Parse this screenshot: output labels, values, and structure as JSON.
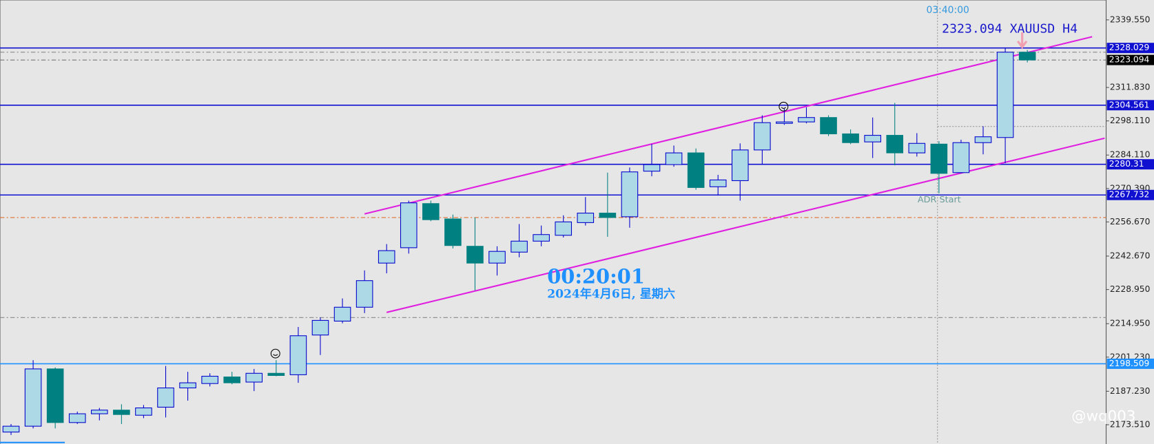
{
  "chart_data": {
    "type": "candlestick",
    "title": "2323.094 XAUUSD H4",
    "time_label": "03:40:00",
    "countdown": "00:20:01",
    "date_label": "2024年4月6日, 星期六",
    "annotation": "ADR Start",
    "watermark": "@wq003",
    "up_color": "#add8e6",
    "up_edge": "#0000cd",
    "down_color": "#008080",
    "open": [
      2170.5,
      2172.9,
      2196.4,
      2174.4,
      2178.0,
      2179.5,
      2177.4,
      2180.7,
      2188.6,
      2190.4,
      2193.1,
      2191.0,
      2194.6,
      2194.0,
      2210.3,
      2216.0,
      2221.7,
      2239.8,
      2246.1,
      2264.2,
      2257.9,
      2246.7,
      2239.8,
      2244.3,
      2248.8,
      2251.2,
      2256.4,
      2260.3,
      2258.8,
      2277.5,
      2280.2,
      2285.0,
      2271.1,
      2273.6,
      2286.2,
      2297.1,
      2297.7,
      2299.5,
      2292.8,
      2289.5,
      2292.2,
      2285.0,
      2288.6,
      2276.9,
      2289.2,
      2291.3,
      2326.3
    ],
    "high": [
      2173.8,
      2200.0,
      2197.0,
      2178.9,
      2180.4,
      2181.9,
      2181.6,
      2197.6,
      2195.2,
      2194.6,
      2195.2,
      2196.4,
      2200.0,
      2213.6,
      2217.5,
      2225.3,
      2236.8,
      2247.6,
      2265.4,
      2265.4,
      2259.7,
      2258.5,
      2246.7,
      2255.8,
      2255.2,
      2259.4,
      2266.9,
      2276.9,
      2279.0,
      2288.6,
      2288.0,
      2286.8,
      2276.0,
      2288.9,
      2300.4,
      2303.1,
      2303.7,
      2300.4,
      2294.6,
      2299.5,
      2305.5,
      2293.1,
      2289.8,
      2290.4,
      2295.9,
      2327.8,
      2327.2
    ],
    "low": [
      2169.3,
      2172.0,
      2172.0,
      2173.8,
      2175.3,
      2173.8,
      2176.2,
      2176.5,
      2183.4,
      2189.2,
      2190.1,
      2187.3,
      2193.4,
      2190.7,
      2202.1,
      2215.1,
      2219.3,
      2235.6,
      2243.7,
      2257.0,
      2245.8,
      2228.6,
      2234.7,
      2242.2,
      2246.7,
      2250.3,
      2255.2,
      2250.6,
      2254.3,
      2275.4,
      2279.3,
      2269.9,
      2267.5,
      2265.4,
      2280.5,
      2296.5,
      2297.1,
      2291.9,
      2288.6,
      2282.9,
      2279.9,
      2283.5,
      2268.4,
      2276.6,
      2284.4,
      2280.8,
      2322.1
    ],
    "close": [
      2172.9,
      2196.4,
      2174.4,
      2178.0,
      2179.5,
      2177.7,
      2180.4,
      2188.6,
      2190.7,
      2193.4,
      2190.7,
      2194.6,
      2193.7,
      2210.0,
      2216.3,
      2221.7,
      2232.6,
      2244.9,
      2264.5,
      2257.6,
      2247.0,
      2239.8,
      2244.6,
      2248.8,
      2251.5,
      2256.7,
      2260.3,
      2258.5,
      2277.2,
      2280.2,
      2285.0,
      2270.8,
      2273.9,
      2286.2,
      2297.4,
      2297.7,
      2299.5,
      2292.8,
      2289.2,
      2292.2,
      2285.0,
      2288.9,
      2276.6,
      2289.2,
      2291.6,
      2326.3,
      2323.1
    ],
    "levels": [
      {
        "value": 2328.029,
        "color": "#1010d0"
      },
      {
        "value": 2323.094,
        "color": "#000000"
      },
      {
        "value": 2304.561,
        "color": "#1010d0"
      },
      {
        "value": 2280.31,
        "color": "#1010d0"
      },
      {
        "value": 2267.732,
        "color": "#1010d0"
      },
      {
        "value": 2198.509,
        "color": "#1e90ff"
      }
    ],
    "ylim": [
      2165.6,
      2347.7
    ],
    "yticks": [
      {
        "value": 2339.55,
        "label": "2339.550"
      },
      {
        "value": 2311.83,
        "label": "2311.830"
      },
      {
        "value": 2298.11,
        "label": "2298.110"
      },
      {
        "value": 2284.11,
        "label": "2284.110"
      },
      {
        "value": 2270.39,
        "label": "2270.390"
      },
      {
        "value": 2256.67,
        "label": "2256.670"
      },
      {
        "value": 2242.67,
        "label": "2242.670"
      },
      {
        "value": 2228.95,
        "label": "2228.950"
      },
      {
        "value": 2214.95,
        "label": "2214.950"
      },
      {
        "value": 2201.23,
        "label": "2201.230"
      },
      {
        "value": 2187.23,
        "label": "2187.230"
      },
      {
        "value": 2173.51,
        "label": "2173.510"
      }
    ]
  }
}
